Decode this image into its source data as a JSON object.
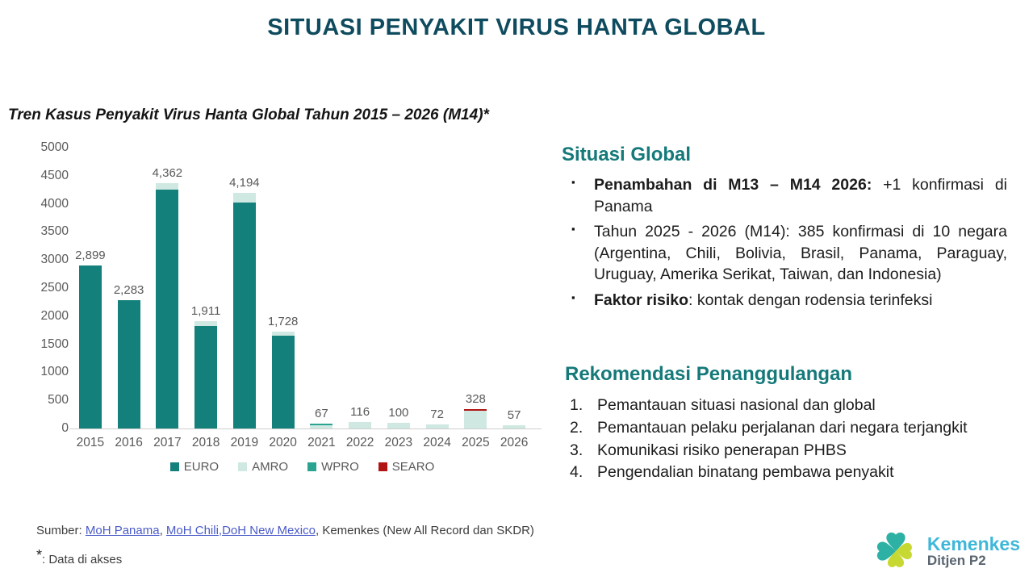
{
  "slide": {
    "title": "SITUASI PENYAKIT VIRUS HANTA GLOBAL",
    "chart_title": "Tren Kasus Penyakit Virus Hanta Global Tahun 2015 – 2026 (M14)*"
  },
  "chart_data": {
    "type": "bar",
    "stacked": true,
    "title": "Tren Kasus Penyakit Virus Hanta Global Tahun 2015 – 2026 (M14)*",
    "categories": [
      "2015",
      "2016",
      "2017",
      "2018",
      "2019",
      "2020",
      "2021",
      "2022",
      "2023",
      "2024",
      "2025",
      "2026"
    ],
    "series": [
      {
        "name": "EURO",
        "color": "#13807b",
        "values": [
          2899,
          2283,
          4250,
          1820,
          4030,
          1650,
          0,
          0,
          0,
          0,
          0,
          0
        ]
      },
      {
        "name": "AMRO",
        "color": "#cfe8e2",
        "values": [
          0,
          0,
          112,
          91,
          164,
          78,
          60,
          116,
          100,
          72,
          320,
          57
        ]
      },
      {
        "name": "WPRO",
        "color": "#2aa491",
        "values": [
          0,
          0,
          0,
          0,
          0,
          0,
          7,
          0,
          0,
          0,
          0,
          0
        ]
      },
      {
        "name": "SEARO",
        "color": "#b01513",
        "values": [
          0,
          0,
          0,
          0,
          0,
          0,
          0,
          0,
          0,
          0,
          8,
          0
        ]
      }
    ],
    "totals": [
      2899,
      2283,
      4362,
      1911,
      4194,
      1728,
      67,
      116,
      100,
      72,
      328,
      57
    ],
    "totals_labels": [
      "2,899",
      "2,283",
      "4,362",
      "1,911",
      "4,194",
      "1,728",
      "67",
      "116",
      "100",
      "72",
      "328",
      "57"
    ],
    "ylim": [
      0,
      5000
    ],
    "ytick_step": 500,
    "grid": false,
    "legend_position": "bottom"
  },
  "global_section": {
    "heading": "Situasi Global",
    "bullets": [
      {
        "bold": "Penambahan di M13 – M14 2026:",
        "text": " +1 konfirmasi di Panama"
      },
      {
        "bold": "",
        "text": "Tahun 2025 - 2026 (M14): 385 konfirmasi di 10 negara (Argentina, Chili, Bolivia, Brasil, Panama, Paraguay, Uruguay, Amerika Serikat, Taiwan, dan Indonesia)"
      },
      {
        "bold": "Faktor risiko",
        "text": ": kontak dengan rodensia terinfeksi"
      }
    ]
  },
  "recommendations": {
    "heading": "Rekomendasi Penanggulangan",
    "items": [
      "Pemantauan situasi nasional dan global",
      "Pemantauan pelaku perjalanan dari negara terjangkit",
      "Komunikasi risiko penerapan PHBS",
      "Pengendalian binatang pembawa penyakit"
    ]
  },
  "footer": {
    "source_prefix": "Sumber: ",
    "link1": "MoH Panama",
    "sep1": ", ",
    "link2": "MoH Chili,DoH New Mexico",
    "sep2": ", ",
    "source_rest": "Kemenkes (New All Record dan SKDR)",
    "footnote_star": "*",
    "footnote_text": ": Data di akses"
  },
  "logo": {
    "brand": "Kemenkes",
    "sub": "Ditjen P2"
  },
  "colors": {
    "title": "#0f4b5e",
    "section_heading": "#15797a",
    "axis_text": "#595959",
    "link": "#4a5bc8",
    "logo_teal": "#2cb1a4",
    "logo_lime": "#c6d831",
    "logo_brand_blue": "#3fb7d9",
    "logo_sub_gray": "#5a6570"
  }
}
